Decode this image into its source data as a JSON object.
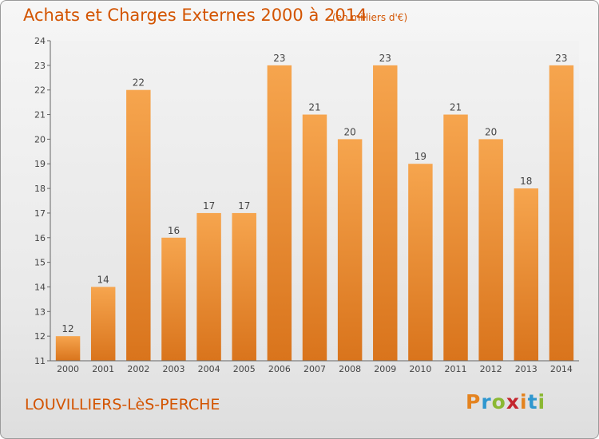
{
  "header": {
    "title": "Achats et Charges Externes 2000 à 2014",
    "subtitle": "(en milliers d'€)"
  },
  "footer": {
    "city": "LOUVILLIERS-LèS-PERCHE",
    "brand": [
      "P",
      "r",
      "o",
      "x",
      "i",
      "t",
      "i"
    ]
  },
  "colors": {
    "title": "#d35400",
    "bar_light": "#f6a54e",
    "bar_dark": "#d9741c"
  },
  "chart_data": {
    "type": "bar",
    "title": "Achats et Charges Externes 2000 à 2014",
    "subtitle": "(en milliers d'€)",
    "xlabel": "",
    "ylabel": "",
    "categories": [
      "2000",
      "2001",
      "2002",
      "2003",
      "2004",
      "2005",
      "2006",
      "2007",
      "2008",
      "2009",
      "2010",
      "2011",
      "2012",
      "2013",
      "2014"
    ],
    "values": [
      12,
      14,
      22,
      16,
      17,
      17,
      23,
      21,
      20,
      23,
      19,
      21,
      20,
      18,
      23
    ],
    "ylim": [
      11,
      24
    ],
    "yticks": [
      11,
      12,
      13,
      14,
      15,
      16,
      17,
      18,
      19,
      20,
      21,
      22,
      23,
      24
    ],
    "grid": false,
    "legend": "none"
  }
}
